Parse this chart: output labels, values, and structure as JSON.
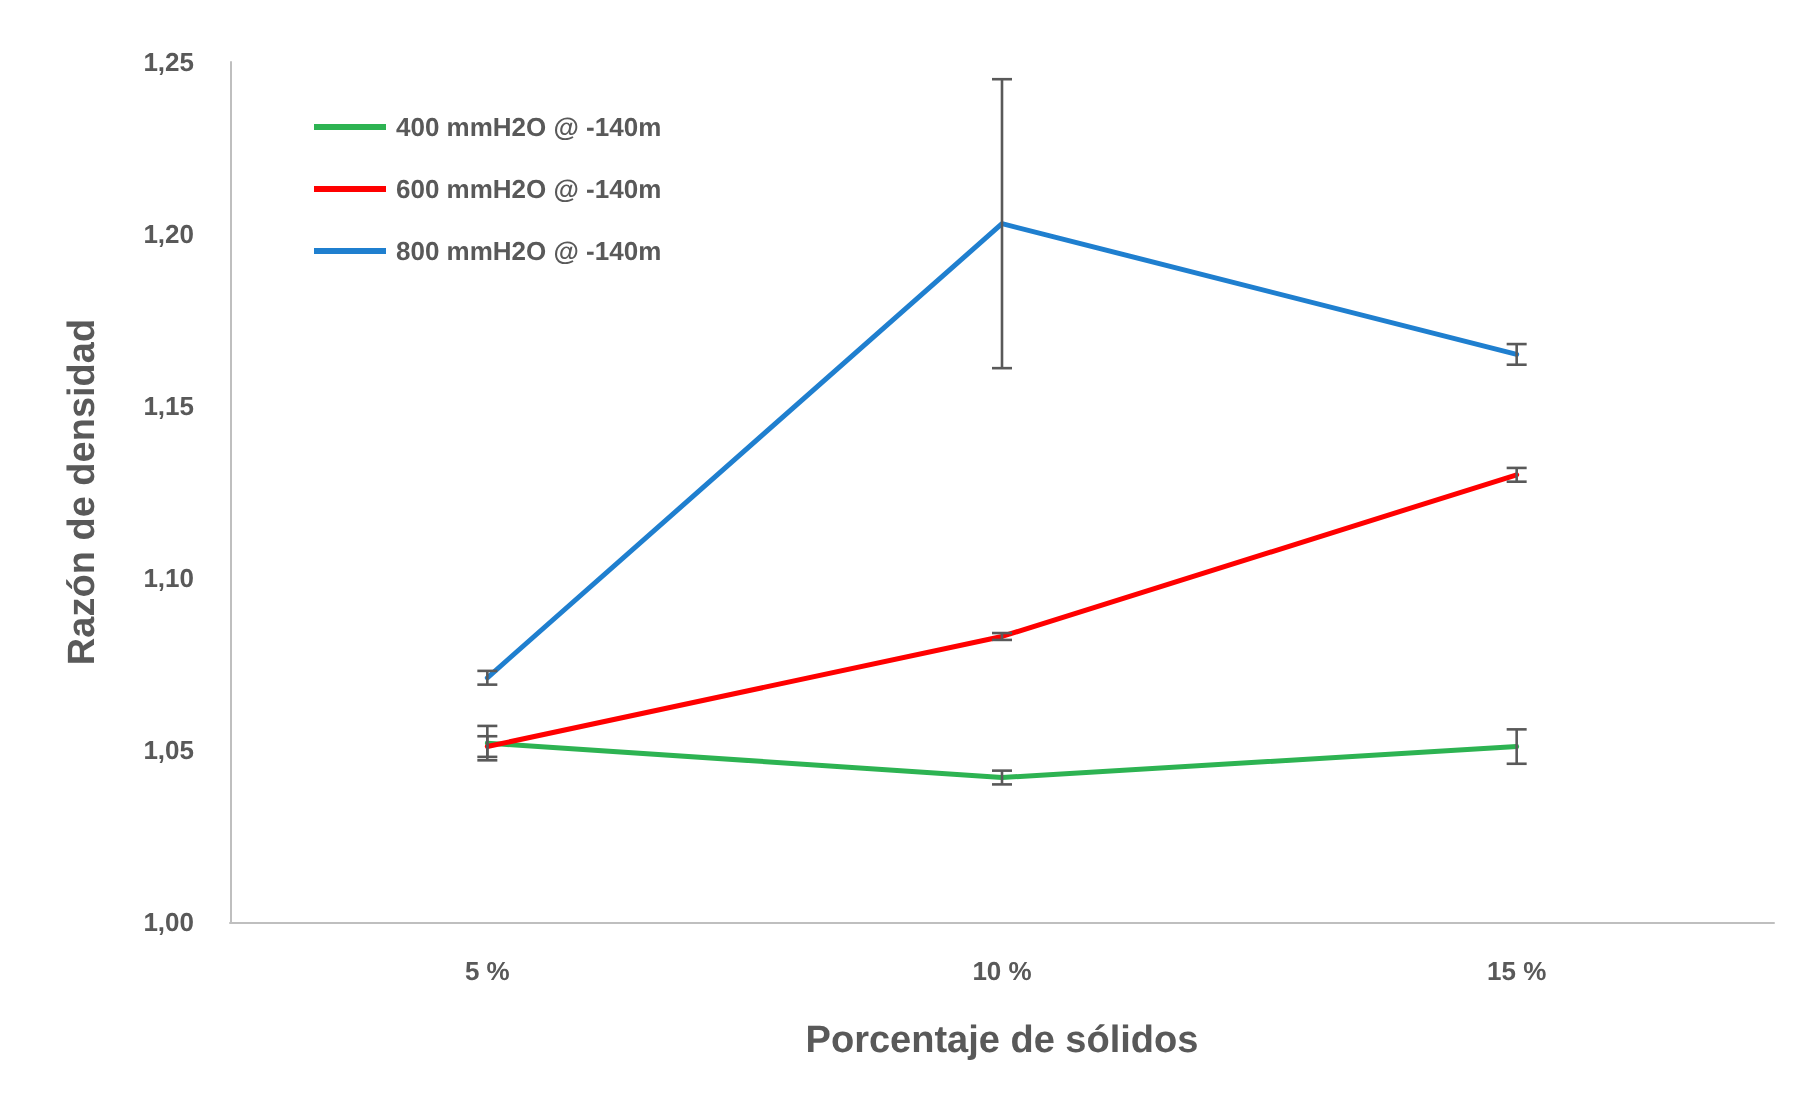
{
  "chart_data": {
    "type": "line",
    "xlabel": "Porcentaje de sólidos",
    "ylabel": "Razón de densidad",
    "categories": [
      "5 %",
      "10 %",
      "15 %"
    ],
    "series": [
      {
        "name": "400 mmH2O @ -140m",
        "color": "#2db352",
        "values": [
          1.052,
          1.042,
          1.051
        ],
        "errors": [
          0.005,
          0.002,
          0.005
        ]
      },
      {
        "name": "600 mmH2O @ -140m",
        "color": "#ff0000",
        "values": [
          1.051,
          1.083,
          1.13
        ],
        "errors": [
          0.003,
          0.001,
          0.002
        ]
      },
      {
        "name": "800 mmH2O @ -140m",
        "color": "#1f7fcf",
        "values": [
          1.071,
          1.203,
          1.165
        ],
        "errors": [
          0.002,
          0.042,
          0.003
        ]
      }
    ],
    "ylim": [
      1.0,
      1.25
    ],
    "yticks": [
      {
        "value": 1.0,
        "label": "1,00"
      },
      {
        "value": 1.05,
        "label": "1,05"
      },
      {
        "value": 1.1,
        "label": "1,10"
      },
      {
        "value": 1.15,
        "label": "1,15"
      },
      {
        "value": 1.2,
        "label": "1,20"
      },
      {
        "value": 1.25,
        "label": "1,25"
      }
    ],
    "grid": false,
    "legend": "top left",
    "marker": "none",
    "line_style": "solid"
  }
}
